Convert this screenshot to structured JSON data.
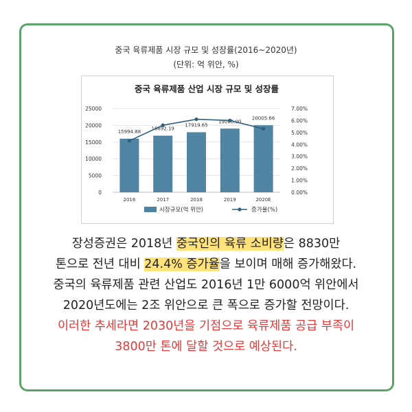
{
  "header": {
    "title": "중국 육류제품 시장 규모 및 성장률(2016~2020년)",
    "unit": "(단위: 억 위안, %)"
  },
  "chart_data": {
    "type": "bar",
    "title": "중국 육류제품 산업 시장 규모 및 성장률",
    "categories": [
      "2016",
      "2017",
      "2018",
      "2019",
      "2020E"
    ],
    "series": [
      {
        "name": "시장규모(억 위안)",
        "type": "bar",
        "axis": "left",
        "values": [
          15994.88,
          16892.19,
          17919.65,
          19000.0,
          20005.66
        ],
        "labels": [
          "15994.88",
          "16892.19",
          "17919.65",
          "19000.00",
          "20005.66"
        ],
        "color": "#4f84a3"
      },
      {
        "name": "증가율(%)",
        "type": "line",
        "axis": "right",
        "values": [
          4.3,
          5.6,
          6.1,
          6.0,
          5.3
        ],
        "color": "#2f5f7d"
      }
    ],
    "y_left": {
      "ticks": [
        "0",
        "5000",
        "10000",
        "15000",
        "20000",
        "25000"
      ],
      "min": 0,
      "max": 25000
    },
    "y_right": {
      "ticks": [
        "0.00%",
        "1.00%",
        "2.00%",
        "3.00%",
        "4.00%",
        "5.00%",
        "6.00%",
        "7.00%"
      ],
      "min": 0,
      "max": 7
    },
    "legend": "bottom",
    "grid": true
  },
  "body": {
    "line1_pre": "장성증권은 2018년 ",
    "line1_hl": "중국인의 육류 소비량",
    "line1_post": "은 8830만",
    "line2_pre": "톤으로 전년 대비 ",
    "line2_hl": "24.4% 증가율",
    "line2_post": "을 보이며 매해 증가해왔다.",
    "line3": "중국의 육류제품 관련 산업도 2016년 1만 6000억 위안에서",
    "line4": "2020년도에는 2조 위안으로 큰 폭으로 증가할 전망이다.",
    "line5": "이러한 추세라면 2030년을 기점으로 육류제품 공급 부족이",
    "line6": "3800만 톤에 달할 것으로 예상된다."
  }
}
